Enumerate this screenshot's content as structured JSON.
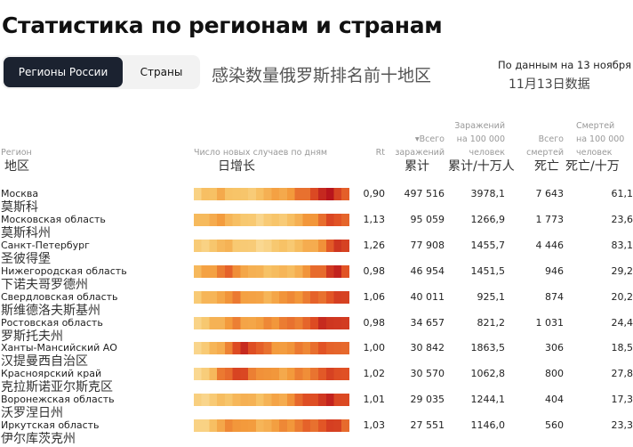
{
  "page_title": "Статистика по регионам и странам",
  "tabs": [
    {
      "label": "Регионы России",
      "active": true
    },
    {
      "label": "Страны",
      "active": false
    }
  ],
  "zh_subtitle": "感染数量俄罗斯排名前十地区",
  "data_date": "По данным на 13 ноября",
  "data_date_zh": "11月13日数据",
  "colors": {
    "tab_active_bg": "#1b2230",
    "heat_low": "#fbe3a8",
    "heat_mid": "#f39a3c",
    "heat_high": "#b8151c"
  },
  "columns": {
    "region": "Регион",
    "region_zh": "地区",
    "daily": "Число новых случаев по дням",
    "daily_zh": "日增长",
    "rt": "Rt",
    "total": [
      "▾Всего",
      "заражений"
    ],
    "total_zh": "累计",
    "per100k": [
      "Заражений",
      "на 100 000",
      "человек"
    ],
    "per100k_zh": "累计/十万人",
    "deaths": [
      "Всего",
      "смертей"
    ],
    "deaths_zh": "死亡",
    "deaths100k": [
      "Смертей",
      "на 100 000",
      "человек"
    ],
    "deaths100k_zh": "死亡/十万"
  },
  "rows": [
    {
      "name": "Москва",
      "zh": "莫斯科",
      "rt": "0,90",
      "total": "497 516",
      "per100k": "3978,1",
      "deaths": "7 643",
      "deaths100k": "61,1",
      "bar_profile": [
        0.2,
        0.3,
        0.25,
        0.35,
        0.3,
        0.25,
        0.2,
        0.25,
        0.3,
        0.35,
        0.4,
        0.45,
        0.5,
        0.6,
        0.7,
        0.8,
        0.9,
        0.95,
        0.85,
        0.7
      ]
    },
    {
      "name": "Московская область",
      "zh": "莫斯科州",
      "rt": "1,13",
      "total": "95 059",
      "per100k": "1266,9",
      "deaths": "1 773",
      "deaths100k": "23,6",
      "bar_profile": [
        0.25,
        0.35,
        0.4,
        0.45,
        0.4,
        0.3,
        0.2,
        0.15,
        0.15,
        0.2,
        0.2,
        0.25,
        0.3,
        0.35,
        0.45,
        0.55,
        0.65,
        0.75,
        0.8,
        0.7
      ]
    },
    {
      "name": "Санкт-Петербург",
      "zh": "圣彼得堡",
      "rt": "1,26",
      "total": "77 908",
      "per100k": "1455,7",
      "deaths": "4 446",
      "deaths100k": "83,1",
      "bar_profile": [
        0.15,
        0.2,
        0.25,
        0.3,
        0.3,
        0.25,
        0.2,
        0.15,
        0.15,
        0.15,
        0.2,
        0.2,
        0.25,
        0.3,
        0.35,
        0.45,
        0.55,
        0.7,
        0.8,
        0.85
      ]
    },
    {
      "name": "Нижегородская область",
      "zh": "下诺夫哥罗德州",
      "rt": "0,98",
      "total": "46 954",
      "per100k": "1451,5",
      "deaths": "946",
      "deaths100k": "29,2",
      "bar_profile": [
        0.3,
        0.4,
        0.5,
        0.6,
        0.65,
        0.6,
        0.45,
        0.35,
        0.3,
        0.3,
        0.3,
        0.3,
        0.35,
        0.4,
        0.5,
        0.6,
        0.7,
        0.85,
        0.9,
        0.8
      ]
    },
    {
      "name": "Свердловская область",
      "zh": "斯维德洛夫斯基州",
      "rt": "1,06",
      "total": "40 011",
      "per100k": "925,1",
      "deaths": "874",
      "deaths100k": "20,2",
      "bar_profile": [
        0.2,
        0.3,
        0.4,
        0.45,
        0.5,
        0.55,
        0.5,
        0.45,
        0.4,
        0.4,
        0.45,
        0.5,
        0.5,
        0.55,
        0.6,
        0.65,
        0.7,
        0.75,
        0.8,
        0.75
      ]
    },
    {
      "name": "Ростовская область",
      "zh": "罗斯托夫州",
      "rt": "0,98",
      "total": "34 657",
      "per100k": "821,2",
      "deaths": "1 031",
      "deaths100k": "24,4",
      "bar_profile": [
        0.15,
        0.2,
        0.3,
        0.4,
        0.5,
        0.55,
        0.5,
        0.45,
        0.45,
        0.5,
        0.55,
        0.6,
        0.6,
        0.65,
        0.7,
        0.75,
        0.85,
        0.9,
        0.85,
        0.8
      ]
    },
    {
      "name": "Ханты-Мансийский АО",
      "zh": "汉提曼西自治区",
      "rt": "1,00",
      "total": "30 842",
      "per100k": "1863,5",
      "deaths": "306",
      "deaths100k": "18,5",
      "bar_profile": [
        0.15,
        0.2,
        0.3,
        0.45,
        0.6,
        0.75,
        0.85,
        0.8,
        0.7,
        0.6,
        0.55,
        0.5,
        0.5,
        0.55,
        0.6,
        0.65,
        0.7,
        0.75,
        0.7,
        0.65
      ]
    },
    {
      "name": "Красноярский край",
      "zh": "克拉斯诺亚尔斯克区",
      "rt": "1,02",
      "total": "30 570",
      "per100k": "1062,8",
      "deaths": "800",
      "deaths100k": "27,8",
      "bar_profile": [
        0.15,
        0.2,
        0.3,
        0.55,
        0.7,
        0.8,
        0.75,
        0.65,
        0.55,
        0.5,
        0.45,
        0.45,
        0.5,
        0.55,
        0.6,
        0.65,
        0.7,
        0.75,
        0.8,
        0.75
      ]
    },
    {
      "name": "Воронежская область",
      "zh": "沃罗涅日州",
      "rt": "1,01",
      "total": "29 035",
      "per100k": "1244,1",
      "deaths": "404",
      "deaths100k": "17,3",
      "bar_profile": [
        0.1,
        0.15,
        0.2,
        0.25,
        0.3,
        0.35,
        0.35,
        0.3,
        0.3,
        0.35,
        0.4,
        0.45,
        0.55,
        0.65,
        0.7,
        0.8,
        0.85,
        0.9,
        0.85,
        0.8
      ]
    },
    {
      "name": "Иркутская область",
      "zh": "伊尔库茨克州",
      "rt": "1,03",
      "total": "27 551",
      "per100k": "1146,0",
      "deaths": "560",
      "deaths100k": "23,3",
      "bar_profile": [
        0.1,
        0.2,
        0.3,
        0.4,
        0.5,
        0.55,
        0.5,
        0.45,
        0.4,
        0.4,
        0.45,
        0.5,
        0.55,
        0.6,
        0.65,
        0.7,
        0.75,
        0.8,
        0.75,
        0.7
      ]
    }
  ]
}
